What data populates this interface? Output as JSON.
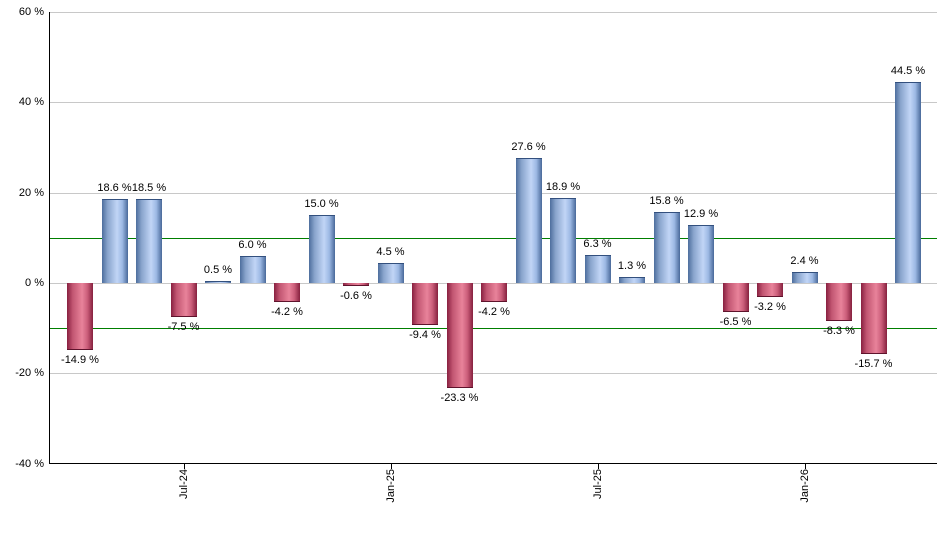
{
  "chart_data": {
    "type": "bar",
    "title": "",
    "xlabel": "",
    "ylabel": "",
    "ylim": [
      -40,
      60
    ],
    "grid": "horizontal",
    "legend_position": "none",
    "values": [
      -14.9,
      18.6,
      18.5,
      -7.5,
      0.5,
      6.0,
      -4.2,
      15.0,
      -0.6,
      4.5,
      -9.4,
      -23.3,
      -4.2,
      27.6,
      18.9,
      6.3,
      1.3,
      15.8,
      12.9,
      -6.5,
      -3.2,
      2.4,
      -8.3,
      -15.7,
      44.5
    ],
    "bar_labels": [
      "-14.9 %",
      "18.6 %",
      "18.5 %",
      "-7.5 %",
      "0.5 %",
      "6.0 %",
      "-4.2 %",
      "15.0 %",
      "-0.6 %",
      "4.5 %",
      "-9.4 %",
      "-23.3 %",
      "-4.2 %",
      "27.6 %",
      "18.9 %",
      "6.3 %",
      "1.3 %",
      "15.8 %",
      "12.9 %",
      "-6.5 %",
      "-3.2 %",
      "2.4 %",
      "-8.3 %",
      "-15.7 %",
      "44.5 %"
    ],
    "x_ticks": [
      {
        "bar_index": 3,
        "label": "Jul-24"
      },
      {
        "bar_index": 9,
        "label": "Jan-25"
      },
      {
        "bar_index": 15,
        "label": "Jul-25"
      },
      {
        "bar_index": 21,
        "label": "Jan-26"
      }
    ],
    "y_ticks": [
      {
        "value": 60,
        "label": "60 %"
      },
      {
        "value": 40,
        "label": "40 %"
      },
      {
        "value": 20,
        "label": "20 %"
      },
      {
        "value": 0,
        "label": "0 %"
      },
      {
        "value": -20,
        "label": "-20 %"
      },
      {
        "value": -40,
        "label": "-40 %"
      }
    ],
    "gridline_values": [
      60,
      40,
      20,
      0,
      -20
    ],
    "reference_line_values": [
      10,
      -10
    ],
    "colors": {
      "background": "#ffffff",
      "axis": "#000000",
      "gridline": "#c8c8c8",
      "reference_line": "#007f00",
      "label_text": "#000000",
      "positive_bar_gradient": [
        "#4d6e9d",
        "#8aa5cd",
        "#c1d5f6",
        "#9db9e4",
        "#49699a"
      ],
      "negative_bar_gradient": [
        "#882040",
        "#c25672",
        "#e8839a",
        "#cc5f7b",
        "#86203e"
      ],
      "gradient_stops": [
        0,
        22,
        58,
        78,
        100
      ]
    }
  }
}
